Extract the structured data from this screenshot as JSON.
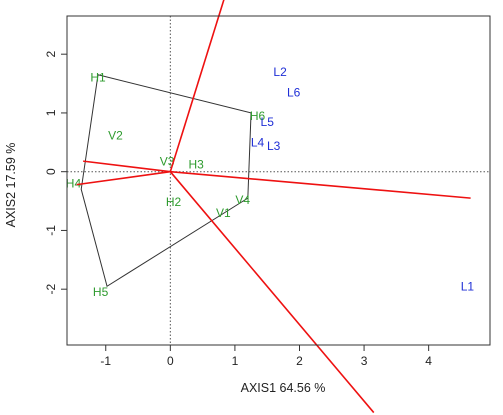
{
  "chart_data": {
    "type": "scatter",
    "xlabel": "AXIS1 64.56 %",
    "ylabel": "AXIS2 17.59 %",
    "xlim": [
      -1.6,
      4.95
    ],
    "ylim": [
      -2.95,
      2.65
    ],
    "x_ticks": [
      -1,
      0,
      1,
      2,
      3,
      4
    ],
    "y_ticks": [
      2,
      1,
      0,
      -1,
      -2
    ],
    "grid": false,
    "reference_lines": {
      "x": 0,
      "y": 0
    },
    "colors": {
      "frame": "#333333",
      "groups_a": "#2e9b2e",
      "groups_b": "#1f2fd6",
      "vectors": "#ee1111",
      "polygon": "#333333"
    },
    "points_green": [
      {
        "label": "H1",
        "x": -1.12,
        "y": 1.6
      },
      {
        "label": "V2",
        "x": -0.85,
        "y": 0.62
      },
      {
        "label": "V3",
        "x": -0.05,
        "y": 0.17
      },
      {
        "label": "H3",
        "x": 0.4,
        "y": 0.12
      },
      {
        "label": "H6",
        "x": 1.35,
        "y": 0.95
      },
      {
        "label": "H4",
        "x": -1.5,
        "y": -0.2
      },
      {
        "label": "H2",
        "x": 0.05,
        "y": -0.52
      },
      {
        "label": "V1",
        "x": 0.82,
        "y": -0.7
      },
      {
        "label": "V4",
        "x": 1.12,
        "y": -0.48
      },
      {
        "label": "H5",
        "x": -1.08,
        "y": -2.05
      }
    ],
    "points_blue": [
      {
        "label": "L2",
        "x": 1.7,
        "y": 1.7
      },
      {
        "label": "L6",
        "x": 1.91,
        "y": 1.35
      },
      {
        "label": "L5",
        "x": 1.5,
        "y": 0.85
      },
      {
        "label": "L4",
        "x": 1.35,
        "y": 0.5
      },
      {
        "label": "L3",
        "x": 1.6,
        "y": 0.44
      },
      {
        "label": "L1",
        "x": 4.6,
        "y": -1.95
      }
    ],
    "hull": [
      {
        "x": -1.12,
        "y": 1.65
      },
      {
        "x": 1.25,
        "y": 1.0
      },
      {
        "x": 1.2,
        "y": -0.45
      },
      {
        "x": -0.98,
        "y": -1.95
      },
      {
        "x": -1.38,
        "y": -0.3
      }
    ],
    "vectors": [
      {
        "x": 0.85,
        "y": 3.0
      },
      {
        "x": 4.65,
        "y": -0.45
      },
      {
        "x": 3.15,
        "y": -4.1
      },
      {
        "x": -1.35,
        "y": 0.18
      },
      {
        "x": -1.45,
        "y": -0.22
      }
    ]
  }
}
